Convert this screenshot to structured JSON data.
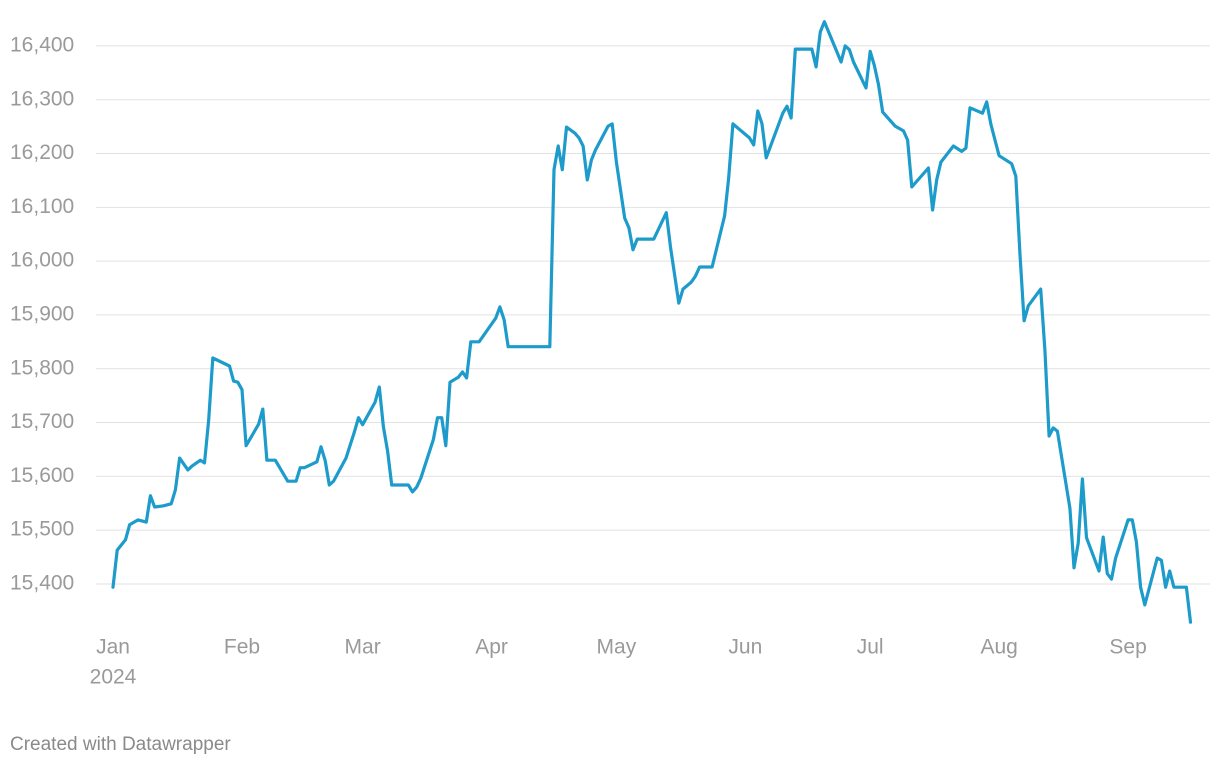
{
  "chart_data": {
    "type": "line",
    "x": [
      0,
      1,
      3,
      4,
      6,
      8,
      9,
      10,
      12,
      14,
      15,
      16,
      18,
      19,
      21,
      22,
      23,
      24,
      28,
      29,
      30,
      31,
      32,
      35,
      36,
      37,
      39,
      42,
      44,
      45,
      46,
      49,
      50,
      51,
      52,
      53,
      56,
      58,
      59,
      60,
      63,
      64,
      65,
      66,
      67,
      71,
      72,
      73,
      74,
      77,
      78,
      79,
      80,
      81,
      83,
      84,
      85,
      86,
      88,
      90,
      92,
      93,
      94,
      95,
      105,
      106,
      107,
      108,
      109,
      111,
      112,
      113,
      114,
      115,
      116,
      119,
      120,
      121,
      123,
      124,
      125,
      126,
      130,
      133,
      134,
      136,
      137,
      139,
      140,
      141,
      144,
      147,
      148,
      149,
      153,
      154,
      155,
      156,
      157,
      161,
      162,
      163,
      164,
      168,
      169,
      170,
      171,
      175,
      176,
      177,
      178,
      181,
      182,
      183,
      184,
      185,
      188,
      190,
      191,
      192,
      196,
      197,
      198,
      199,
      202,
      204,
      205,
      206,
      209,
      210,
      211,
      212,
      213,
      216,
      217,
      218,
      219,
      220,
      223,
      224,
      225,
      226,
      227,
      230,
      231,
      232,
      233,
      234,
      237,
      238,
      239,
      240,
      241,
      244,
      245,
      246,
      247,
      248,
      251,
      252,
      253,
      254,
      255,
      258,
      259
    ],
    "values": [
      15394,
      15463,
      15482,
      15510,
      15519,
      15515,
      15564,
      15543,
      15545,
      15549,
      15575,
      15634,
      15612,
      15619,
      15630,
      15625,
      15705,
      15820,
      15805,
      15777,
      15775,
      15761,
      15657,
      15697,
      15725,
      15630,
      15630,
      15591,
      15591,
      15616,
      15616,
      15627,
      15655,
      15629,
      15584,
      15591,
      15634,
      15682,
      15709,
      15696,
      15738,
      15766,
      15692,
      15647,
      15584,
      15584,
      15571,
      15580,
      15597,
      15668,
      15709,
      15709,
      15657,
      15775,
      15784,
      15794,
      15783,
      15850,
      15850,
      15872,
      15894,
      15915,
      15891,
      15841,
      15841,
      16170,
      16214,
      16170,
      16249,
      16238,
      16229,
      16214,
      16151,
      16188,
      16207,
      16251,
      16255,
      16184,
      16080,
      16062,
      16021,
      16041,
      16041,
      16090,
      16026,
      15922,
      15948,
      15961,
      15972,
      15989,
      15989,
      16084,
      16155,
      16255,
      16229,
      16216,
      16279,
      16255,
      16192,
      16275,
      16288,
      16266,
      16394,
      16394,
      16361,
      16426,
      16445,
      16370,
      16400,
      16393,
      16370,
      16322,
      16390,
      16364,
      16328,
      16277,
      16251,
      16242,
      16225,
      16138,
      16173,
      16095,
      16151,
      16184,
      16214,
      16204,
      16210,
      16285,
      16275,
      16296,
      16255,
      16225,
      16196,
      16181,
      16158,
      16015,
      15889,
      15917,
      15948,
      15835,
      15675,
      15690,
      15684,
      15541,
      15430,
      15476,
      15595,
      15486,
      15424,
      15487,
      15419,
      15409,
      15448,
      15519,
      15519,
      15478,
      15394,
      15361,
      15448,
      15444,
      15394,
      15424,
      15394,
      15394,
      15329
    ],
    "color": "#1d9bca",
    "xlim": [
      0,
      262
    ],
    "xticks": [
      {
        "value": 0,
        "label": "Jan"
      },
      {
        "value": 31,
        "label": "Feb"
      },
      {
        "value": 60,
        "label": "Mar"
      },
      {
        "value": 91,
        "label": "Apr"
      },
      {
        "value": 121,
        "label": "May"
      },
      {
        "value": 152,
        "label": "Jun"
      },
      {
        "value": 182,
        "label": "Jul"
      },
      {
        "value": 213,
        "label": "Aug"
      },
      {
        "value": 244,
        "label": "Sep"
      }
    ],
    "year_label": "2024",
    "ylim": [
      15320,
      16450
    ],
    "yticks": [
      {
        "value": 15400,
        "label": "15,400"
      },
      {
        "value": 15500,
        "label": "15,500"
      },
      {
        "value": 15600,
        "label": "15,600"
      },
      {
        "value": 15700,
        "label": "15,700"
      },
      {
        "value": 15800,
        "label": "15,800"
      },
      {
        "value": 15900,
        "label": "15,900"
      },
      {
        "value": 16000,
        "label": "16,000"
      },
      {
        "value": 16100,
        "label": "16,100"
      },
      {
        "value": 16200,
        "label": "16,200"
      },
      {
        "value": 16300,
        "label": "16,300"
      },
      {
        "value": 16400,
        "label": "16,400"
      }
    ],
    "grid": true,
    "footer": "Created with Datawrapper"
  }
}
